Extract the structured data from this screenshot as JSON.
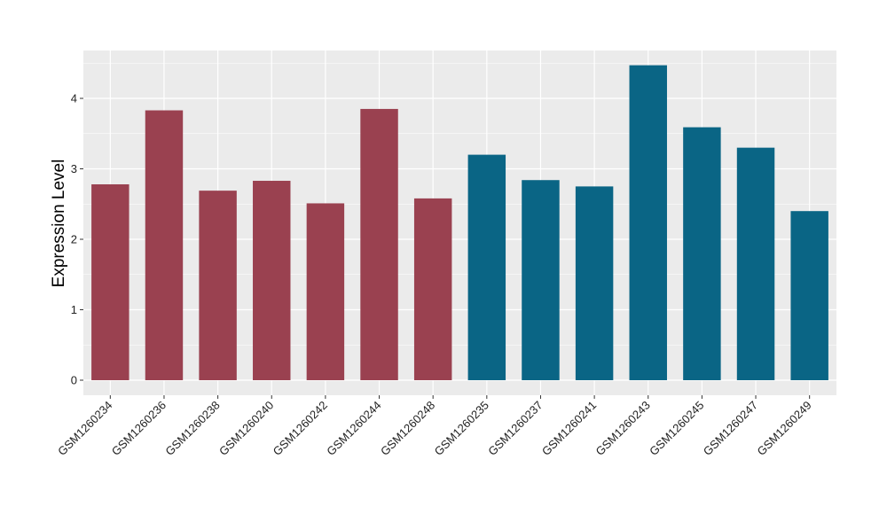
{
  "chart_data": {
    "type": "bar",
    "ylabel": "Expression Level",
    "xlabel": "",
    "ylim": [
      0,
      4.6
    ],
    "yticks": [
      0,
      1,
      2,
      3,
      4
    ],
    "grid": true,
    "categories": [
      "GSM1260234",
      "GSM1260236",
      "GSM1260238",
      "GSM1260240",
      "GSM1260242",
      "GSM1260244",
      "GSM1260248",
      "GSM1260235",
      "GSM1260237",
      "GSM1260241",
      "GSM1260243",
      "GSM1260245",
      "GSM1260247",
      "GSM1260249"
    ],
    "values": [
      2.78,
      3.83,
      2.69,
      2.83,
      2.51,
      3.85,
      2.58,
      3.2,
      2.84,
      2.75,
      4.47,
      3.59,
      3.3,
      2.4
    ],
    "group_colors": [
      "#9a4150",
      "#9a4150",
      "#9a4150",
      "#9a4150",
      "#9a4150",
      "#9a4150",
      "#9a4150",
      "#0a6585",
      "#0a6585",
      "#0a6585",
      "#0a6585",
      "#0a6585",
      "#0a6585",
      "#0a6585"
    ],
    "panel_background": "#ebebeb",
    "gridline_color": "#ffffff"
  }
}
